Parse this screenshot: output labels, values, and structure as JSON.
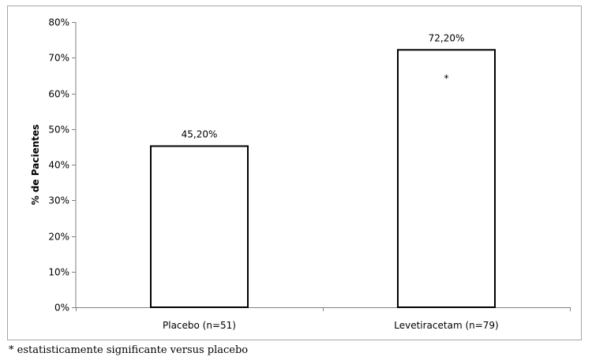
{
  "chart_data": {
    "type": "bar",
    "categories": [
      "Placebo (n=51)",
      "Levetiracetam (n=79)"
    ],
    "values": [
      45.2,
      72.2
    ],
    "value_labels": [
      "45,20%",
      "72,20%"
    ],
    "marks": [
      "",
      "*"
    ],
    "ylabel": "% de Pacientes",
    "xlabel": "",
    "ylim": [
      0,
      80
    ],
    "y_ticks": [
      "0%",
      "10%",
      "20%",
      "30%",
      "40%",
      "50%",
      "60%",
      "70%",
      "80%"
    ],
    "grid": false,
    "legend": "none",
    "colors": {
      "bar_fill": "#ffffff",
      "bar_stroke": "#000000",
      "axis": "#808080",
      "frame": "#a6a6a6"
    }
  },
  "footnote": "* estatisticamente significante versus placebo"
}
